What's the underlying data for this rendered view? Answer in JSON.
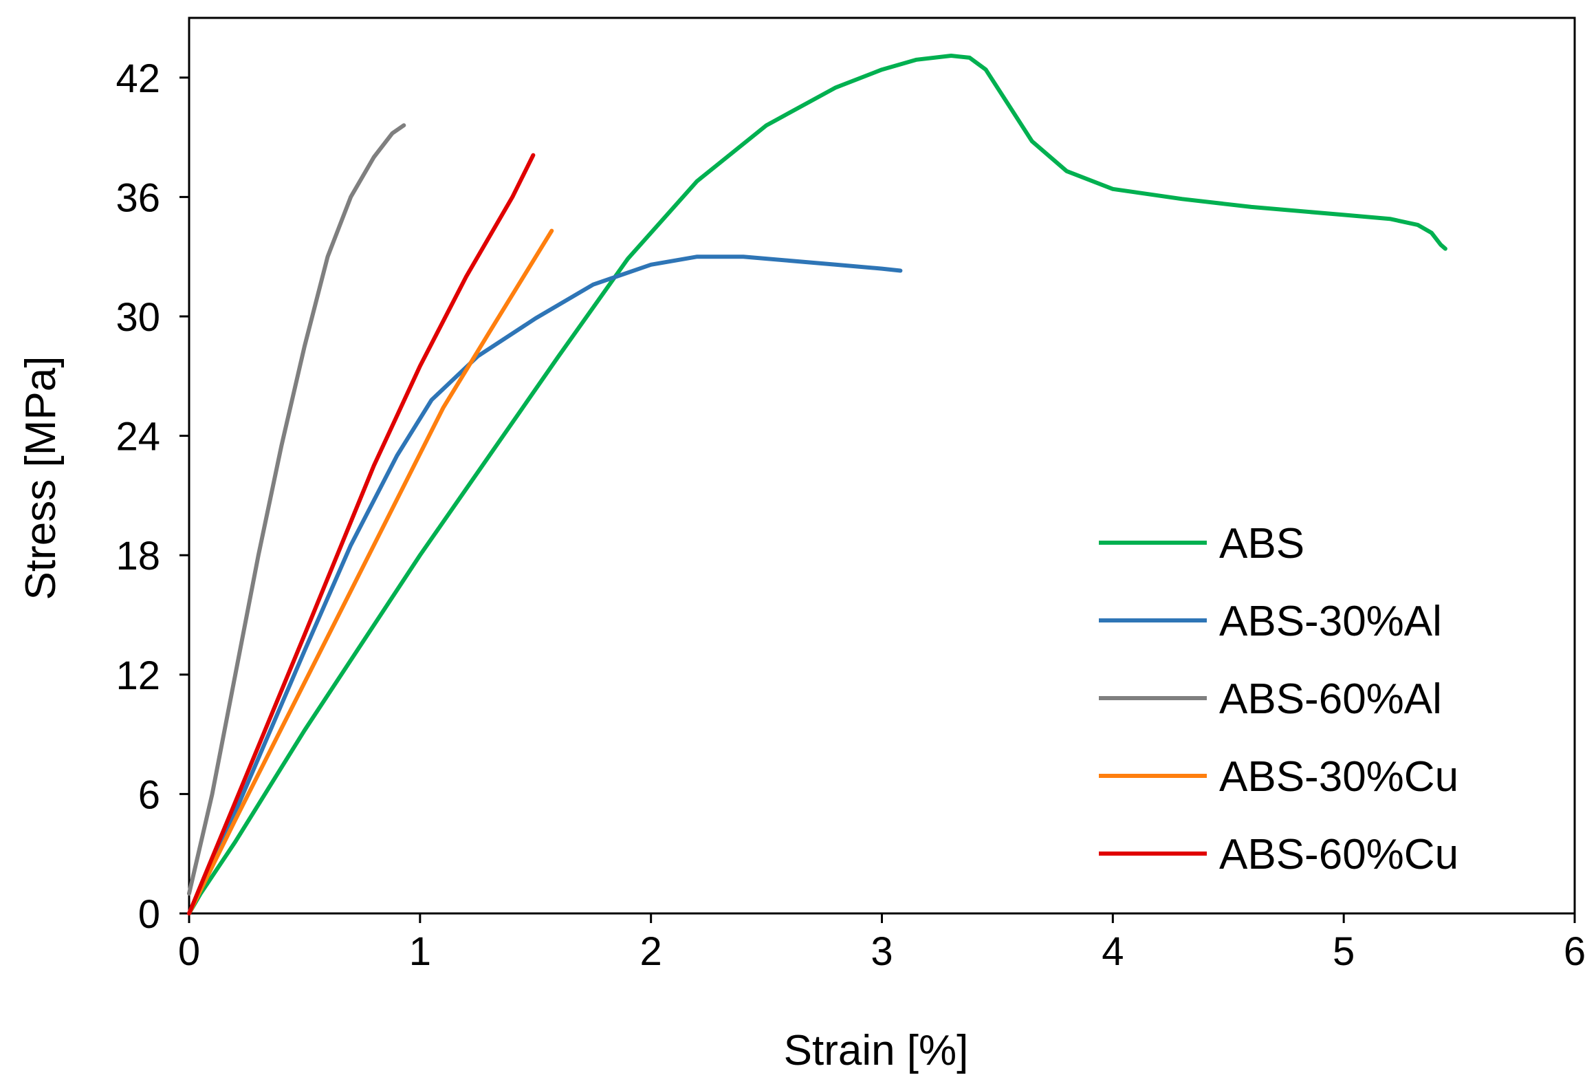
{
  "chart_data": {
    "type": "line",
    "title": "",
    "xlabel": "Strain [%]",
    "ylabel": "Stress [MPa]",
    "xlim": [
      0,
      6
    ],
    "ylim": [
      0,
      45
    ],
    "xticks": [
      0,
      1,
      2,
      3,
      4,
      5,
      6
    ],
    "yticks": [
      0,
      6,
      12,
      18,
      24,
      30,
      36,
      42
    ],
    "grid": false,
    "legend_position": "bottom-right",
    "series": [
      {
        "name": "ABS",
        "color": "#00b050",
        "points": [
          [
            0,
            0
          ],
          [
            0.05,
            1.0
          ],
          [
            0.2,
            3.6
          ],
          [
            0.5,
            9.2
          ],
          [
            1.0,
            18.0
          ],
          [
            1.3,
            23.0
          ],
          [
            1.6,
            28.0
          ],
          [
            1.9,
            32.9
          ],
          [
            2.2,
            36.8
          ],
          [
            2.5,
            39.6
          ],
          [
            2.8,
            41.5
          ],
          [
            3.0,
            42.4
          ],
          [
            3.15,
            42.9
          ],
          [
            3.3,
            43.1
          ],
          [
            3.38,
            43.0
          ],
          [
            3.45,
            42.4
          ],
          [
            3.55,
            40.6
          ],
          [
            3.65,
            38.8
          ],
          [
            3.8,
            37.3
          ],
          [
            4.0,
            36.4
          ],
          [
            4.3,
            35.9
          ],
          [
            4.6,
            35.5
          ],
          [
            5.0,
            35.1
          ],
          [
            5.2,
            34.9
          ],
          [
            5.32,
            34.6
          ],
          [
            5.38,
            34.2
          ],
          [
            5.42,
            33.6
          ],
          [
            5.44,
            33.4
          ]
        ]
      },
      {
        "name": "ABS-30%Al",
        "color": "#2e75b6",
        "points": [
          [
            0,
            0
          ],
          [
            0.1,
            2.4
          ],
          [
            0.3,
            7.8
          ],
          [
            0.5,
            13.2
          ],
          [
            0.7,
            18.5
          ],
          [
            0.9,
            23.0
          ],
          [
            1.05,
            25.8
          ],
          [
            1.25,
            28.0
          ],
          [
            1.5,
            29.9
          ],
          [
            1.75,
            31.6
          ],
          [
            2.0,
            32.6
          ],
          [
            2.2,
            33.0
          ],
          [
            2.4,
            33.0
          ],
          [
            2.6,
            32.8
          ],
          [
            2.8,
            32.6
          ],
          [
            3.0,
            32.4
          ],
          [
            3.08,
            32.3
          ]
        ]
      },
      {
        "name": "ABS-60%Al",
        "color": "#7f7f7f",
        "points": [
          [
            0,
            1.0
          ],
          [
            0.1,
            6.0
          ],
          [
            0.2,
            12.0
          ],
          [
            0.3,
            18.0
          ],
          [
            0.4,
            23.5
          ],
          [
            0.5,
            28.5
          ],
          [
            0.6,
            33.0
          ],
          [
            0.7,
            36.0
          ],
          [
            0.8,
            38.0
          ],
          [
            0.88,
            39.2
          ],
          [
            0.93,
            39.6
          ]
        ]
      },
      {
        "name": "ABS-30%Cu",
        "color": "#ff7f0e",
        "points": [
          [
            0,
            0
          ],
          [
            0.2,
            4.7
          ],
          [
            0.5,
            11.6
          ],
          [
            0.8,
            18.5
          ],
          [
            1.1,
            25.4
          ],
          [
            1.3,
            29.2
          ],
          [
            1.57,
            34.3
          ]
        ]
      },
      {
        "name": "ABS-60%Cu",
        "color": "#e00000",
        "points": [
          [
            0,
            0
          ],
          [
            0.2,
            5.6
          ],
          [
            0.5,
            14.0
          ],
          [
            0.8,
            22.5
          ],
          [
            1.0,
            27.5
          ],
          [
            1.2,
            32.0
          ],
          [
            1.4,
            36.0
          ],
          [
            1.49,
            38.1
          ]
        ]
      }
    ]
  }
}
